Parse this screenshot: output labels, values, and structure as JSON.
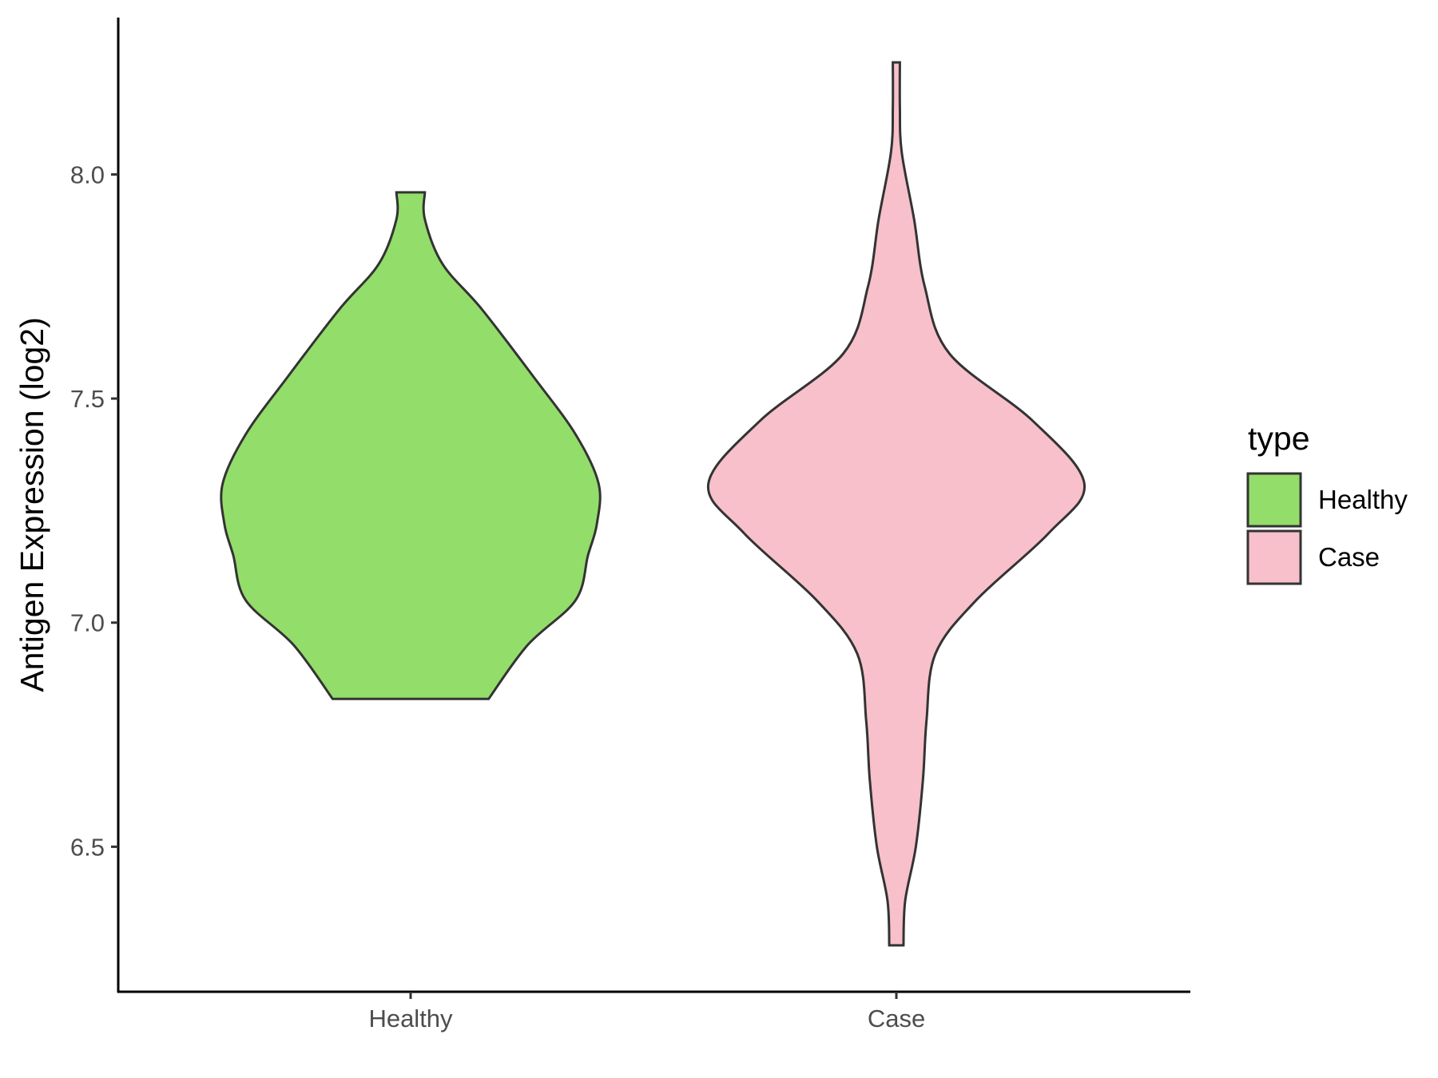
{
  "chart_data": {
    "type": "violin",
    "xlabel": "",
    "ylabel": "Antigen Expression (log2)",
    "ylim": [
      6.18,
      8.35
    ],
    "yticks": [
      "6.5",
      "7.0",
      "7.5",
      "8.0"
    ],
    "categories": [
      "Healthy",
      "Case"
    ],
    "grid": false,
    "legend": {
      "title": "type",
      "position": "right",
      "items": [
        {
          "label": "Healthy",
          "color": "#93dd6a"
        },
        {
          "label": "Case",
          "color": "#f7c0cb"
        }
      ]
    },
    "series": [
      {
        "category": "Healthy",
        "color": "#93dd6a",
        "min": 6.83,
        "max": 7.96,
        "density_profile": [
          {
            "y": 6.83,
            "width": 0.44
          },
          {
            "y": 6.95,
            "width": 0.66
          },
          {
            "y": 7.05,
            "width": 0.93
          },
          {
            "y": 7.15,
            "width": 1.0
          },
          {
            "y": 7.22,
            "width": 1.05
          },
          {
            "y": 7.31,
            "width": 1.06
          },
          {
            "y": 7.42,
            "width": 0.93
          },
          {
            "y": 7.55,
            "width": 0.69
          },
          {
            "y": 7.7,
            "width": 0.4
          },
          {
            "y": 7.8,
            "width": 0.18
          },
          {
            "y": 7.9,
            "width": 0.08
          },
          {
            "y": 7.96,
            "width": 0.08
          }
        ]
      },
      {
        "category": "Case",
        "color": "#f7c0cb",
        "min": 6.28,
        "max": 8.25,
        "density_profile": [
          {
            "y": 6.28,
            "width": 0.04
          },
          {
            "y": 6.38,
            "width": 0.05
          },
          {
            "y": 6.5,
            "width": 0.11
          },
          {
            "y": 6.65,
            "width": 0.15
          },
          {
            "y": 6.78,
            "width": 0.17
          },
          {
            "y": 6.93,
            "width": 0.22
          },
          {
            "y": 7.05,
            "width": 0.45
          },
          {
            "y": 7.2,
            "width": 0.86
          },
          {
            "y": 7.31,
            "width": 1.06
          },
          {
            "y": 7.45,
            "width": 0.77
          },
          {
            "y": 7.6,
            "width": 0.3
          },
          {
            "y": 7.75,
            "width": 0.16
          },
          {
            "y": 7.9,
            "width": 0.1
          },
          {
            "y": 8.05,
            "width": 0.03
          },
          {
            "y": 8.15,
            "width": 0.02
          },
          {
            "y": 8.25,
            "width": 0.02
          }
        ]
      }
    ]
  }
}
